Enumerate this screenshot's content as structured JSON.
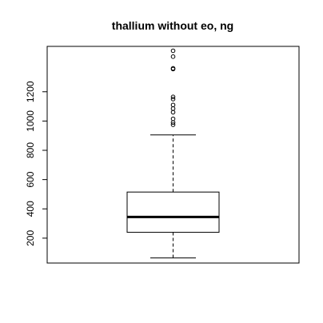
{
  "chart_data": {
    "type": "boxplot",
    "title": "thallium without eo, ng",
    "xlabel": "",
    "ylabel": "",
    "ylim": [
      30,
      1510
    ],
    "yticks": [
      200,
      400,
      600,
      800,
      1000,
      1200
    ],
    "ytick_labels": [
      "200",
      "400",
      "600",
      "800",
      "1000",
      "1200"
    ],
    "box": {
      "whisker_low": 65,
      "q1": 240,
      "median": 345,
      "q3": 515,
      "whisker_high": 905
    },
    "outliers": [
      975,
      990,
      1015,
      1060,
      1085,
      1110,
      1150,
      1165,
      1355,
      1360,
      1440,
      1480
    ],
    "colors": {
      "stroke": "#000000",
      "background": "#ffffff"
    }
  }
}
